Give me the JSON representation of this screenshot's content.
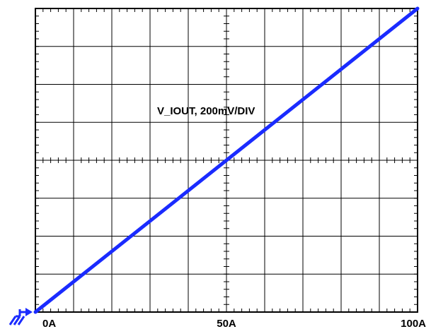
{
  "chart_data": {
    "type": "line",
    "title": "",
    "xlabel": "",
    "ylabel": "",
    "x_divisions": 10,
    "y_divisions": 8,
    "xlim": [
      0,
      100
    ],
    "x_tick_labels": [
      {
        "value": 0,
        "label": "0A"
      },
      {
        "value": 50,
        "label": "50A"
      },
      {
        "value": 100,
        "label": "100A"
      }
    ],
    "y_unit_per_div": "200mV",
    "grid": true,
    "series": [
      {
        "name": "V_IOUT, 200mV/DIV",
        "color": "#1a2bff",
        "points": [
          [
            0,
            0
          ],
          [
            100,
            8
          ]
        ]
      }
    ],
    "ground_marker": "ground-reference-icon"
  }
}
